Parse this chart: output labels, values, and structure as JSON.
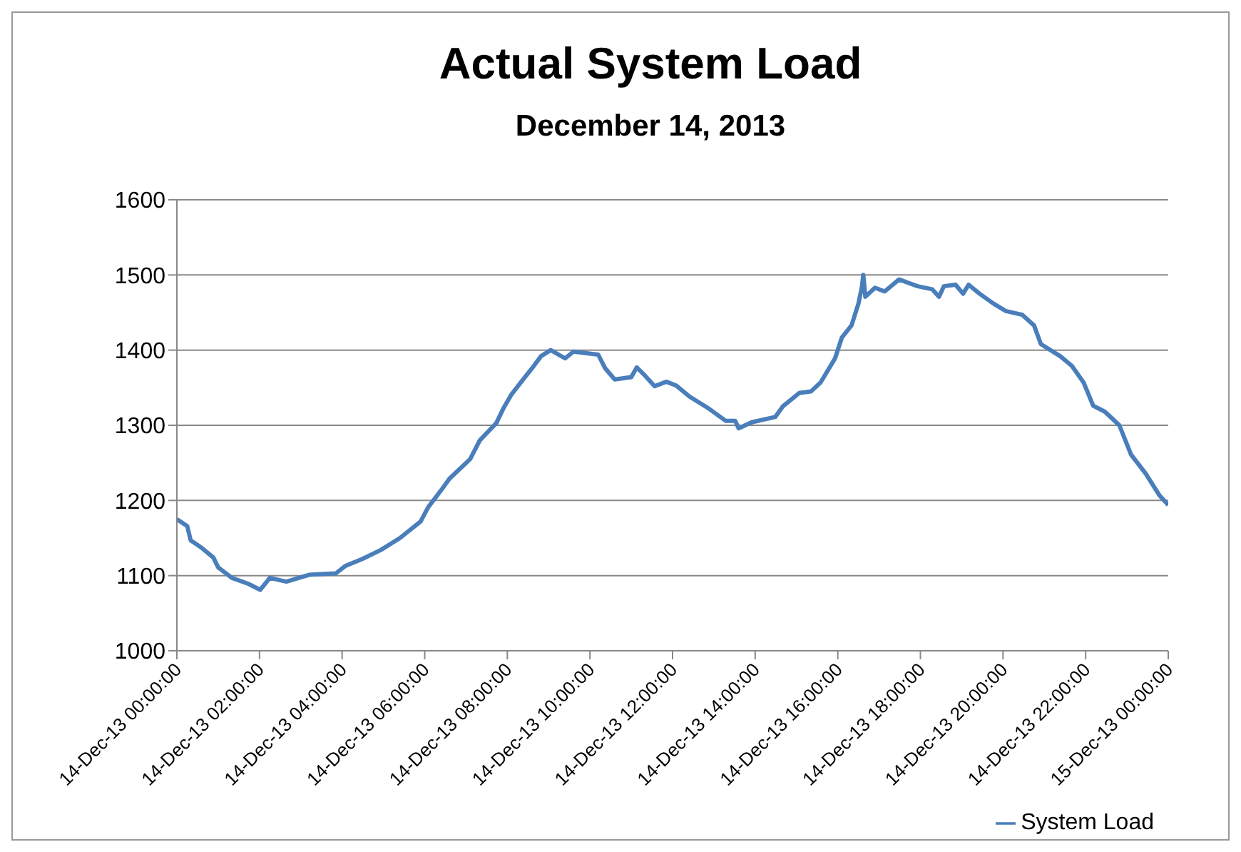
{
  "chart_data": {
    "type": "line",
    "title": "Actual System Load",
    "subtitle": "December 14, 2013",
    "x": [
      "2013-12-14T00:00",
      "2013-12-14T00:15",
      "2013-12-14T00:20",
      "2013-12-14T00:36",
      "2013-12-14T00:53",
      "2013-12-14T01:00",
      "2013-12-14T01:20",
      "2013-12-14T01:44",
      "2013-12-14T02:01",
      "2013-12-14T02:15",
      "2013-12-14T02:39",
      "2013-12-14T03:12",
      "2013-12-14T03:51",
      "2013-12-14T04:05",
      "2013-12-14T04:29",
      "2013-12-14T04:56",
      "2013-12-14T05:24",
      "2013-12-14T05:54",
      "2013-12-14T06:05",
      "2013-12-14T06:25",
      "2013-12-14T06:36",
      "2013-12-14T07:06",
      "2013-12-14T07:20",
      "2013-12-14T07:44",
      "2013-12-14T07:54",
      "2013-12-14T08:06",
      "2013-12-14T08:22",
      "2013-12-14T08:36",
      "2013-12-14T08:49",
      "2013-12-14T09:03",
      "2013-12-14T09:24",
      "2013-12-14T09:36",
      "2013-12-14T10:12",
      "2013-12-14T10:22",
      "2013-12-14T10:36",
      "2013-12-14T11:00",
      "2013-12-14T11:08",
      "2013-12-14T11:20",
      "2013-12-14T11:34",
      "2013-12-14T11:51",
      "2013-12-14T12:05",
      "2013-12-14T12:25",
      "2013-12-14T12:53",
      "2013-12-14T13:17",
      "2013-12-14T13:31",
      "2013-12-14T13:36",
      "2013-12-14T13:55",
      "2013-12-14T14:29",
      "2013-12-14T14:40",
      "2013-12-14T15:04",
      "2013-12-14T15:21",
      "2013-12-14T15:35",
      "2013-12-14T15:56",
      "2013-12-14T16:06",
      "2013-12-14T16:20",
      "2013-12-14T16:30",
      "2013-12-14T16:35",
      "2013-12-14T16:37",
      "2013-12-14T16:40",
      "2013-12-14T16:54",
      "2013-12-14T17:08",
      "2013-12-14T17:29",
      "2013-12-14T17:56",
      "2013-12-14T18:17",
      "2013-12-14T18:27",
      "2013-12-14T18:34",
      "2013-12-14T18:51",
      "2013-12-14T19:02",
      "2013-12-14T19:10",
      "2013-12-14T19:26",
      "2013-12-14T19:46",
      "2013-12-14T20:04",
      "2013-12-14T20:28",
      "2013-12-14T20:45",
      "2013-12-14T20:55",
      "2013-12-14T21:23",
      "2013-12-14T21:40",
      "2013-12-14T21:57",
      "2013-12-14T22:11",
      "2013-12-14T22:28",
      "2013-12-14T22:49",
      "2013-12-14T23:06",
      "2013-12-14T23:27",
      "2013-12-14T23:47",
      "2013-12-15T00:00"
    ],
    "series": [
      {
        "name": "System Load",
        "color": "#4a7ebb",
        "values": [
          1175,
          1166,
          1147,
          1137,
          1124,
          1111,
          1097,
          1089,
          1081,
          1097,
          1092,
          1101,
          1103,
          1113,
          1122,
          1134,
          1150,
          1172,
          1191,
          1215,
          1229,
          1255,
          1280,
          1303,
          1322,
          1341,
          1360,
          1376,
          1392,
          1400,
          1389,
          1398,
          1394,
          1376,
          1361,
          1364,
          1377,
          1366,
          1352,
          1358,
          1353,
          1338,
          1322,
          1306,
          1306,
          1296,
          1304,
          1311,
          1325,
          1343,
          1345,
          1357,
          1389,
          1417,
          1433,
          1462,
          1484,
          1500,
          1471,
          1483,
          1478,
          1494,
          1485,
          1481,
          1471,
          1485,
          1487,
          1475,
          1487,
          1475,
          1462,
          1452,
          1447,
          1433,
          1408,
          1392,
          1379,
          1357,
          1326,
          1318,
          1300,
          1261,
          1236,
          1207,
          1194
        ]
      }
    ],
    "xlim": [
      "2013-12-14T00:00",
      "2013-12-15T00:00"
    ],
    "xticks": [
      {
        "value": "2013-12-14T00:00",
        "label": "14-Dec-13 00:00:00"
      },
      {
        "value": "2013-12-14T02:00",
        "label": "14-Dec-13 02:00:00"
      },
      {
        "value": "2013-12-14T04:00",
        "label": "14-Dec-13 04:00:00"
      },
      {
        "value": "2013-12-14T06:00",
        "label": "14-Dec-13 06:00:00"
      },
      {
        "value": "2013-12-14T08:00",
        "label": "14-Dec-13 08:00:00"
      },
      {
        "value": "2013-12-14T10:00",
        "label": "14-Dec-13 10:00:00"
      },
      {
        "value": "2013-12-14T12:00",
        "label": "14-Dec-13 12:00:00"
      },
      {
        "value": "2013-12-14T14:00",
        "label": "14-Dec-13 14:00:00"
      },
      {
        "value": "2013-12-14T16:00",
        "label": "14-Dec-13 16:00:00"
      },
      {
        "value": "2013-12-14T18:00",
        "label": "14-Dec-13 18:00:00"
      },
      {
        "value": "2013-12-14T20:00",
        "label": "14-Dec-13 20:00:00"
      },
      {
        "value": "2013-12-14T22:00",
        "label": "14-Dec-13 22:00:00"
      },
      {
        "value": "2013-12-15T00:00",
        "label": "15-Dec-13 00:00:00"
      }
    ],
    "ylim": [
      1000,
      1600
    ],
    "yticks": [
      1000,
      1100,
      1200,
      1300,
      1400,
      1500,
      1600
    ],
    "grid": "y",
    "legend": "bottom right",
    "marker": "none",
    "line_style": "solid"
  }
}
